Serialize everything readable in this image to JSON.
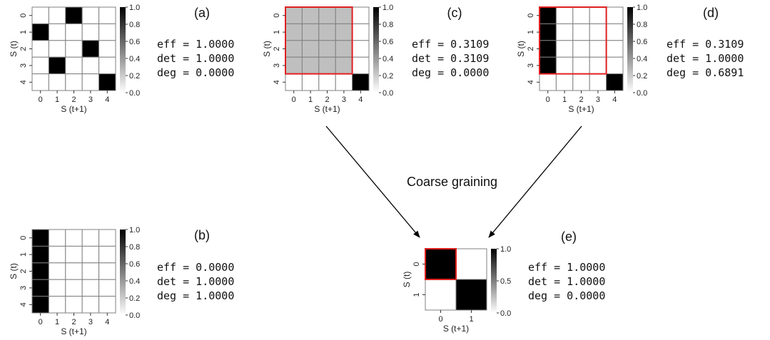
{
  "annotation": "Coarse graining",
  "axis_labels": {
    "x": "S (t+1)",
    "y": "S (t)"
  },
  "colorbar_ticks_5": [
    "1.0",
    "0.8",
    "0.6",
    "0.4",
    "0.2",
    "0.0"
  ],
  "colorbar_ticks_2": [
    "1.0",
    "0.5",
    "0.0"
  ],
  "panels": [
    {
      "id": "a",
      "label": "(a)",
      "matrix": [
        [
          0,
          0,
          1,
          0,
          0
        ],
        [
          1,
          0,
          0,
          0,
          0
        ],
        [
          0,
          0,
          0,
          1,
          0
        ],
        [
          0,
          1,
          0,
          0,
          0
        ],
        [
          0,
          0,
          0,
          0,
          1
        ]
      ],
      "row_ticks": [
        "0",
        "1",
        "2",
        "3",
        "4"
      ],
      "col_ticks": [
        "0",
        "1",
        "2",
        "3",
        "4"
      ],
      "metrics": {
        "eff": "eff = 1.0000",
        "det": "det = 1.0000",
        "deg": "deg = 0.0000"
      }
    },
    {
      "id": "b",
      "label": "(b)",
      "matrix": [
        [
          1,
          0,
          0,
          0,
          0
        ],
        [
          1,
          0,
          0,
          0,
          0
        ],
        [
          1,
          0,
          0,
          0,
          0
        ],
        [
          1,
          0,
          0,
          0,
          0
        ],
        [
          1,
          0,
          0,
          0,
          0
        ]
      ],
      "row_ticks": [
        "0",
        "1",
        "2",
        "3",
        "4"
      ],
      "col_ticks": [
        "0",
        "1",
        "2",
        "3",
        "4"
      ],
      "metrics": {
        "eff": "eff = 0.0000",
        "det": "det = 1.0000",
        "deg": "deg = 1.0000"
      }
    },
    {
      "id": "c",
      "label": "(c)",
      "matrix": [
        [
          0.25,
          0.25,
          0.25,
          0.25,
          0
        ],
        [
          0.25,
          0.25,
          0.25,
          0.25,
          0
        ],
        [
          0.25,
          0.25,
          0.25,
          0.25,
          0
        ],
        [
          0.25,
          0.25,
          0.25,
          0.25,
          0
        ],
        [
          0,
          0,
          0,
          0,
          1
        ]
      ],
      "row_ticks": [
        "0",
        "1",
        "2",
        "3",
        "4"
      ],
      "col_ticks": [
        "0",
        "1",
        "2",
        "3",
        "4"
      ],
      "highlight": {
        "rows": 4,
        "cols": 4
      },
      "metrics": {
        "eff": "eff = 0.3109",
        "det": "det = 0.3109",
        "deg": "deg = 0.0000"
      }
    },
    {
      "id": "d",
      "label": "(d)",
      "matrix": [
        [
          1,
          0,
          0,
          0,
          0
        ],
        [
          1,
          0,
          0,
          0,
          0
        ],
        [
          1,
          0,
          0,
          0,
          0
        ],
        [
          1,
          0,
          0,
          0,
          0
        ],
        [
          0,
          0,
          0,
          0,
          1
        ]
      ],
      "row_ticks": [
        "0",
        "1",
        "2",
        "3",
        "4"
      ],
      "col_ticks": [
        "0",
        "1",
        "2",
        "3",
        "4"
      ],
      "highlight": {
        "rows": 4,
        "cols": 4
      },
      "metrics": {
        "eff": "eff = 0.3109",
        "det": "det = 1.0000",
        "deg": "deg = 0.6891"
      }
    },
    {
      "id": "e",
      "label": "(e)",
      "matrix": [
        [
          1,
          0
        ],
        [
          0,
          1
        ]
      ],
      "row_ticks": [
        "0",
        "1"
      ],
      "col_ticks": [
        "0",
        "1"
      ],
      "highlight": {
        "rows": 1,
        "cols": 1
      },
      "metrics": {
        "eff": "eff = 1.0000",
        "det": "det = 1.0000",
        "deg": "deg = 0.0000"
      }
    }
  ]
}
